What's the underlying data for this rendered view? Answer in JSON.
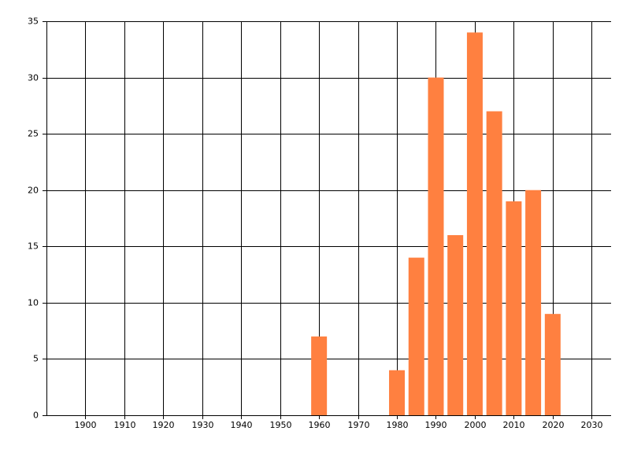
{
  "chart_data": {
    "type": "bar",
    "x": [
      1960,
      1980,
      1985,
      1990,
      1995,
      2000,
      2005,
      2010,
      2015,
      2020
    ],
    "values": [
      7,
      4,
      14,
      30,
      16,
      34,
      27,
      19,
      20,
      9
    ],
    "color": "#ff8040",
    "xlim": [
      1890,
      2035
    ],
    "xticks": [
      1900,
      1910,
      1920,
      1930,
      1940,
      1950,
      1960,
      1970,
      1980,
      1990,
      2000,
      2010,
      2020,
      2030
    ],
    "ylim": [
      0,
      35
    ],
    "yticks": [
      0,
      5,
      10,
      15,
      20,
      25,
      30,
      35
    ],
    "grid": true
  }
}
